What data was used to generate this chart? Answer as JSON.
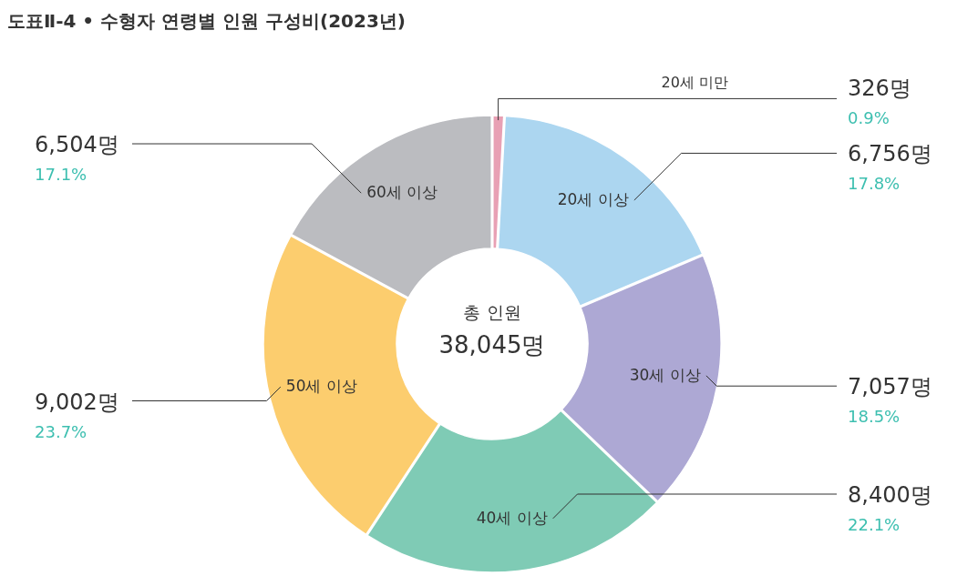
{
  "chart_data": {
    "type": "donut",
    "title": "도표Ⅱ-4 • 수형자 연령별 인원 구성비(2023년)",
    "categories": [
      "20세 미만",
      "20세 이상",
      "30세 이상",
      "40세 이상",
      "50세 이상",
      "60세 이상"
    ],
    "values": [
      326,
      6756,
      7057,
      8400,
      9002,
      6504
    ],
    "value_labels": [
      "326명",
      "6,756명",
      "7,057명",
      "8,400명",
      "9,002명",
      "6,504명"
    ],
    "colors": [
      "#e8a0b4",
      "#acd6f0",
      "#ada8d4",
      "#7fcbb5",
      "#fccd6e",
      "#bbbcc0"
    ],
    "annotations": [
      {
        "text": "0.9%",
        "x": "20세 미만"
      },
      {
        "text": "17.8%",
        "x": "20세 이상"
      },
      {
        "text": "18.5%",
        "x": "30세 이상"
      },
      {
        "text": "22.1%",
        "x": "40세 이상"
      },
      {
        "text": "23.7%",
        "x": "50세 이상"
      },
      {
        "text": "17.1%",
        "x": "60세 이상"
      },
      "총 인원",
      "38,045명"
    ]
  }
}
